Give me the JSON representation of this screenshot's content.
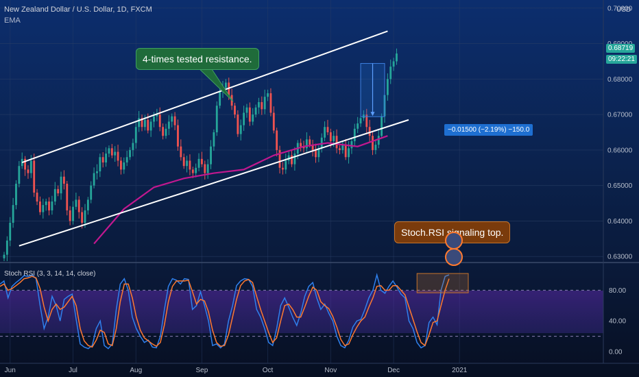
{
  "header": {
    "symbol_line": "New Zealand Dollar / U.S. Dollar, 1D, FXCM",
    "indicator": "EMA"
  },
  "currency_label": "USD",
  "current_price": "0.68719",
  "countdown": "09:22:21",
  "annotations": {
    "resistance": "4-times tested resistance.",
    "stoch_note": "Stoch.RSI signaling top.",
    "measure": "−0.01500 (−2.19%) −150.0"
  },
  "stoch_label": "Stoch RSI (3, 3, 14, 14, close)",
  "colors": {
    "bull": "#26a69a",
    "bear": "#ef5350",
    "ema": "#c2188f",
    "k_line": "#2f80ed",
    "d_line": "#ff7a2f",
    "callout_green": "#1f6b3a",
    "callout_brown": "#7a3b0c",
    "measure_box": "#1e6fd1"
  },
  "chart_data": [
    {
      "type": "candlestick",
      "title": "New Zealand Dollar / U.S. Dollar, 1D, FXCM",
      "x_ticks": [
        "Jun",
        "Jul",
        "Aug",
        "Sep",
        "Oct",
        "Nov",
        "Dec",
        "2021"
      ],
      "y_ticks": [
        0.63,
        0.64,
        0.65,
        0.66,
        0.67,
        0.68,
        0.69,
        0.7
      ],
      "y_tick_labels": [
        "0.63000",
        "0.64000",
        "0.65000",
        "0.66000",
        "0.67000",
        "0.68000",
        "0.69000",
        "0.70000"
      ],
      "ylim": [
        0.6285,
        0.7015
      ],
      "xlim": [
        0,
        200
      ],
      "grid": true,
      "month_day_index": [
        2,
        23,
        44,
        66,
        88,
        109,
        130,
        152
      ],
      "candles_close": [
        0.6305,
        0.6345,
        0.6395,
        0.6445,
        0.6505,
        0.6555,
        0.6575,
        0.6545,
        0.6535,
        0.657,
        0.648,
        0.6455,
        0.6425,
        0.6445,
        0.6455,
        0.643,
        0.6455,
        0.649,
        0.6478,
        0.6525,
        0.6505,
        0.643,
        0.64,
        0.644,
        0.646,
        0.6425,
        0.6395,
        0.643,
        0.646,
        0.65,
        0.6535,
        0.654,
        0.658,
        0.6565,
        0.659,
        0.6605,
        0.6585,
        0.6595,
        0.657,
        0.6545,
        0.6565,
        0.658,
        0.66,
        0.662,
        0.6665,
        0.669,
        0.6665,
        0.6685,
        0.6655,
        0.668,
        0.6695,
        0.67,
        0.6665,
        0.664,
        0.666,
        0.668,
        0.6695,
        0.667,
        0.661,
        0.658,
        0.6555,
        0.657,
        0.6545,
        0.6535,
        0.655,
        0.6575,
        0.656,
        0.6535,
        0.656,
        0.661,
        0.665,
        0.6725,
        0.6765,
        0.6775,
        0.679,
        0.6755,
        0.6725,
        0.67,
        0.6645,
        0.667,
        0.6705,
        0.672,
        0.668,
        0.67,
        0.672,
        0.6735,
        0.6715,
        0.675,
        0.676,
        0.6705,
        0.6655,
        0.66,
        0.655,
        0.6545,
        0.657,
        0.6585,
        0.656,
        0.659,
        0.662,
        0.661,
        0.6605,
        0.663,
        0.6615,
        0.66,
        0.658,
        0.6605,
        0.6635,
        0.6665,
        0.665,
        0.6625,
        0.664,
        0.6605,
        0.66,
        0.6615,
        0.658,
        0.6605,
        0.6625,
        0.666,
        0.6675,
        0.669,
        0.67,
        0.6665,
        0.664,
        0.66,
        0.6615,
        0.664,
        0.6695,
        0.6755,
        0.68,
        0.6835,
        0.685,
        0.6872
      ],
      "ema": {
        "x": [
          30,
          40,
          50,
          60,
          70,
          80,
          90,
          100,
          108,
          118,
          128
        ],
        "values": [
          0.6336,
          0.6434,
          0.6495,
          0.652,
          0.6535,
          0.6545,
          0.6585,
          0.661,
          0.662,
          0.661,
          0.664
        ]
      },
      "channel_upper": [
        [
          6,
          0.6565
        ],
        [
          128,
          0.6935
        ]
      ],
      "channel_lower": [
        [
          5,
          0.633
        ],
        [
          135,
          0.6685
        ]
      ],
      "measure_range": {
        "top": 0.6844,
        "bottom": 0.6694,
        "change": "-0.01500",
        "pct": "-2.19%",
        "pips": "-150.0"
      }
    },
    {
      "type": "line",
      "title": "Stoch RSI (3, 3, 14, 14, close)",
      "ylim": [
        -8,
        108
      ],
      "y_ticks": [
        0,
        40,
        80
      ],
      "y_tick_labels": [
        "0.00",
        "40.00",
        "80.00"
      ],
      "bands": [
        20,
        80
      ],
      "series": [
        {
          "name": "K",
          "values": [
            88,
            92,
            70,
            85,
            90,
            94,
            99,
            98,
            100,
            95,
            60,
            30,
            45,
            72,
            60,
            40,
            68,
            72,
            75,
            42,
            10,
            6,
            4,
            8,
            30,
            40,
            8,
            4,
            10,
            55,
            88,
            95,
            80,
            45,
            30,
            20,
            12,
            15,
            6,
            5,
            20,
            55,
            85,
            95,
            93,
            88,
            95,
            94,
            55,
            60,
            78,
            60,
            40,
            8,
            10,
            5,
            10,
            40,
            60,
            86,
            92,
            95,
            94,
            85,
            55,
            45,
            30,
            12,
            8,
            30,
            60,
            70,
            58,
            45,
            34,
            50,
            72,
            85,
            90,
            70,
            55,
            62,
            50,
            40,
            20,
            8,
            5,
            15,
            32,
            40,
            42,
            55,
            70,
            80,
            100,
            80,
            76,
            85,
            92,
            84,
            75,
            70,
            40,
            30,
            12,
            5,
            8,
            38,
            45,
            35,
            80,
            98,
            100
          ]
        },
        {
          "name": "D",
          "values": [
            85,
            88,
            80,
            82,
            86,
            90,
            95,
            96,
            98,
            96,
            82,
            58,
            40,
            55,
            62,
            55,
            58,
            65,
            72,
            60,
            30,
            14,
            8,
            6,
            15,
            28,
            25,
            10,
            8,
            30,
            65,
            88,
            88,
            70,
            45,
            28,
            18,
            14,
            10,
            7,
            12,
            35,
            65,
            85,
            92,
            92,
            92,
            93,
            78,
            62,
            68,
            66,
            52,
            28,
            12,
            7,
            8,
            22,
            45,
            68,
            86,
            92,
            94,
            90,
            72,
            55,
            40,
            25,
            12,
            18,
            40,
            60,
            62,
            55,
            45,
            45,
            58,
            72,
            84,
            80,
            65,
            60,
            56,
            46,
            32,
            16,
            8,
            10,
            22,
            32,
            40,
            45,
            58,
            70,
            85,
            86,
            80,
            80,
            86,
            86,
            80,
            74,
            58,
            42,
            26,
            12,
            8,
            22,
            38,
            40,
            60,
            80,
            95
          ]
        }
      ]
    }
  ]
}
